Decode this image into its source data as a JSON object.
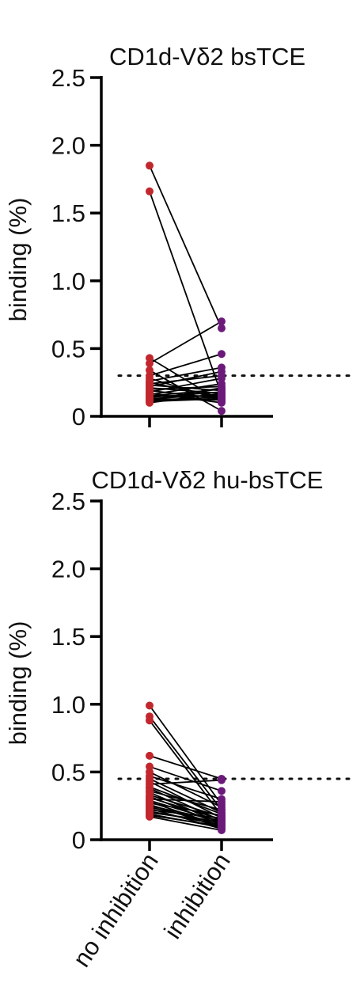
{
  "chart_data": [
    {
      "type": "scatter",
      "title": "CD1d-Vδ2 bsTCE",
      "ylabel": "binding (%)",
      "ylim": [
        0,
        2.5
      ],
      "yticks": [
        "0",
        "0.5",
        "1.0",
        "1.5",
        "2.0",
        "2.5"
      ],
      "categories": [
        "no inhibition",
        "inhibition"
      ],
      "show_category_labels": false,
      "threshold": 0.3,
      "colors": {
        "no_inhibition": "#c1272d",
        "inhibition": "#6b1a7a"
      },
      "pairs": [
        [
          1.85,
          0.65
        ],
        [
          1.66,
          0.16
        ],
        [
          0.43,
          0.11
        ],
        [
          0.39,
          0.7
        ],
        [
          0.34,
          0.04
        ],
        [
          0.3,
          0.46
        ],
        [
          0.28,
          0.12
        ],
        [
          0.26,
          0.36
        ],
        [
          0.25,
          0.14
        ],
        [
          0.24,
          0.3
        ],
        [
          0.23,
          0.19
        ],
        [
          0.22,
          0.33
        ],
        [
          0.21,
          0.17
        ],
        [
          0.2,
          0.22
        ],
        [
          0.19,
          0.13
        ],
        [
          0.18,
          0.28
        ],
        [
          0.17,
          0.1
        ],
        [
          0.16,
          0.24
        ],
        [
          0.15,
          0.15
        ],
        [
          0.15,
          0.2
        ],
        [
          0.14,
          0.18
        ],
        [
          0.13,
          0.12
        ],
        [
          0.13,
          0.16
        ],
        [
          0.12,
          0.21
        ],
        [
          0.12,
          0.14
        ],
        [
          0.11,
          0.13
        ],
        [
          0.1,
          0.17
        ]
      ]
    },
    {
      "type": "scatter",
      "title": "CD1d-Vδ2 hu-bsTCE",
      "ylabel": "binding (%)",
      "ylim": [
        0,
        2.5
      ],
      "yticks": [
        "0",
        "0.5",
        "1.0",
        "1.5",
        "2.0",
        "2.5"
      ],
      "categories": [
        "no inhibition",
        "inhibition"
      ],
      "show_category_labels": true,
      "threshold": 0.45,
      "colors": {
        "no_inhibition": "#c1272d",
        "inhibition": "#6b1a7a"
      },
      "pairs": [
        [
          0.99,
          0.26
        ],
        [
          0.91,
          0.22
        ],
        [
          0.88,
          0.18
        ],
        [
          0.62,
          0.45
        ],
        [
          0.54,
          0.36
        ],
        [
          0.5,
          0.24
        ],
        [
          0.47,
          0.3
        ],
        [
          0.45,
          0.2
        ],
        [
          0.43,
          0.16
        ],
        [
          0.41,
          0.44
        ],
        [
          0.39,
          0.19
        ],
        [
          0.38,
          0.14
        ],
        [
          0.36,
          0.22
        ],
        [
          0.35,
          0.12
        ],
        [
          0.33,
          0.17
        ],
        [
          0.32,
          0.11
        ],
        [
          0.31,
          0.15
        ],
        [
          0.3,
          0.28
        ],
        [
          0.29,
          0.13
        ],
        [
          0.28,
          0.1
        ],
        [
          0.27,
          0.18
        ],
        [
          0.26,
          0.09
        ],
        [
          0.25,
          0.14
        ],
        [
          0.24,
          0.12
        ],
        [
          0.23,
          0.08
        ],
        [
          0.22,
          0.16
        ],
        [
          0.21,
          0.11
        ],
        [
          0.2,
          0.13
        ],
        [
          0.19,
          0.09
        ],
        [
          0.18,
          0.1
        ],
        [
          0.17,
          0.07
        ]
      ]
    }
  ]
}
